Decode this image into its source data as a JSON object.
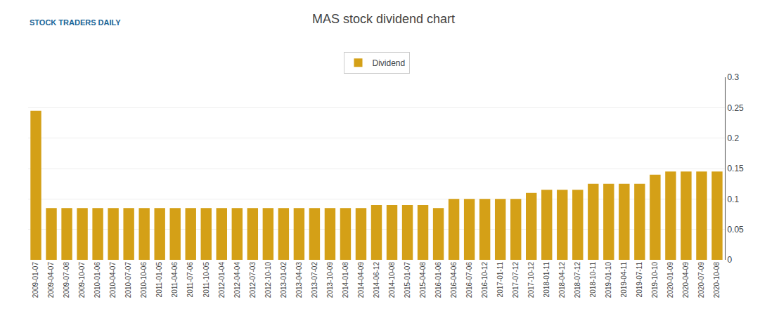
{
  "chart_data": {
    "type": "bar",
    "title": "MAS stock dividend chart",
    "annotations": [
      "STOCK TRADERS DAILY"
    ],
    "categories": [
      "2009-01-07",
      "2009-04-07",
      "2009-07-08",
      "2009-10-07",
      "2010-01-06",
      "2010-04-07",
      "2010-07-07",
      "2010-10-06",
      "2011-01-05",
      "2011-04-06",
      "2011-07-06",
      "2011-10-05",
      "2012-01-04",
      "2012-04-04",
      "2012-07-03",
      "2012-10-10",
      "2013-01-02",
      "2013-04-03",
      "2013-07-02",
      "2013-10-09",
      "2014-01-08",
      "2014-04-09",
      "2014-06-12",
      "2014-10-08",
      "2015-01-07",
      "2015-04-08",
      "2016-01-06",
      "2016-04-06",
      "2016-07-06",
      "2016-10-12",
      "2017-01-11",
      "2017-07-12",
      "2017-10-12",
      "2018-01-11",
      "2018-04-12",
      "2018-07-12",
      "2018-10-11",
      "2019-01-10",
      "2019-04-11",
      "2019-07-11",
      "2019-10-10",
      "2020-01-09",
      "2020-04-09",
      "2020-07-09",
      "2020-10-08"
    ],
    "series": [
      {
        "name": "Dividend",
        "color": "#D4A017",
        "values": [
          0.245,
          0.085,
          0.085,
          0.085,
          0.085,
          0.085,
          0.085,
          0.085,
          0.085,
          0.085,
          0.085,
          0.085,
          0.085,
          0.085,
          0.085,
          0.085,
          0.085,
          0.085,
          0.085,
          0.085,
          0.085,
          0.085,
          0.09,
          0.09,
          0.09,
          0.09,
          0.085,
          0.1,
          0.1,
          0.1,
          0.1,
          0.1,
          0.11,
          0.115,
          0.115,
          0.115,
          0.125,
          0.125,
          0.125,
          0.125,
          0.14,
          0.145,
          0.145,
          0.145,
          0.145
        ]
      }
    ],
    "ylim": [
      0,
      0.3
    ],
    "yticks": [
      0,
      0.05,
      0.1,
      0.15,
      0.2,
      0.25,
      0.3
    ],
    "grid": true,
    "legend": "top"
  }
}
